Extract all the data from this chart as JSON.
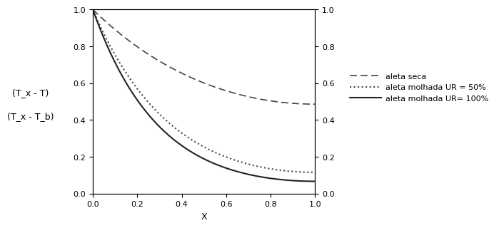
{
  "title": "",
  "xlabel": "X",
  "xlim": [
    0.0,
    1.0
  ],
  "ylim": [
    0.0,
    1.0
  ],
  "xticks": [
    0.0,
    0.2,
    0.4,
    0.6,
    0.8,
    1.0
  ],
  "yticks": [
    0.0,
    0.2,
    0.4,
    0.6,
    0.8,
    1.0
  ],
  "curve_seca": {
    "m": 1.35,
    "label": "aleta seca",
    "linestyle": "--",
    "color": "#444444",
    "linewidth": 1.2,
    "dashes": [
      6,
      3
    ]
  },
  "curve_ur50": {
    "m": 2.85,
    "label": "aleta molhada UR = 50%",
    "linestyle": ":",
    "color": "#444444",
    "linewidth": 1.5
  },
  "curve_ur100": {
    "m": 3.4,
    "label": "aleta molhada UR= 100%",
    "linestyle": "-",
    "color": "#222222",
    "linewidth": 1.5
  },
  "background_color": "#ffffff",
  "legend_fontsize": 8,
  "axis_fontsize": 9,
  "tick_fontsize": 8,
  "ylabel_line1": "(T_x - T)",
  "ylabel_line2": "(T_x - T_b)"
}
